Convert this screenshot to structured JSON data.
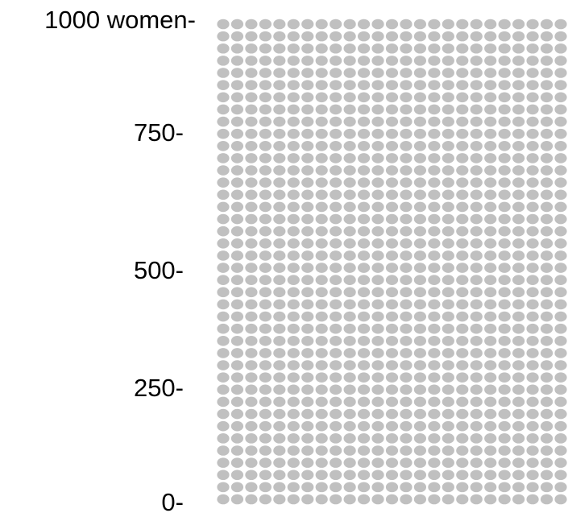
{
  "chart_data": {
    "type": "icon-array",
    "total": 1000,
    "columns": 25,
    "rows": 40,
    "filled": 0,
    "dot_color": "#c0c0c0",
    "y_ticks": [
      {
        "value": 1000,
        "label": "1000 women-"
      },
      {
        "value": 750,
        "label": "750-"
      },
      {
        "value": 500,
        "label": "500-"
      },
      {
        "value": 250,
        "label": "250-"
      },
      {
        "value": 0,
        "label": "0-"
      }
    ],
    "ylim": [
      0,
      1000
    ],
    "grid": false,
    "legend": false
  }
}
